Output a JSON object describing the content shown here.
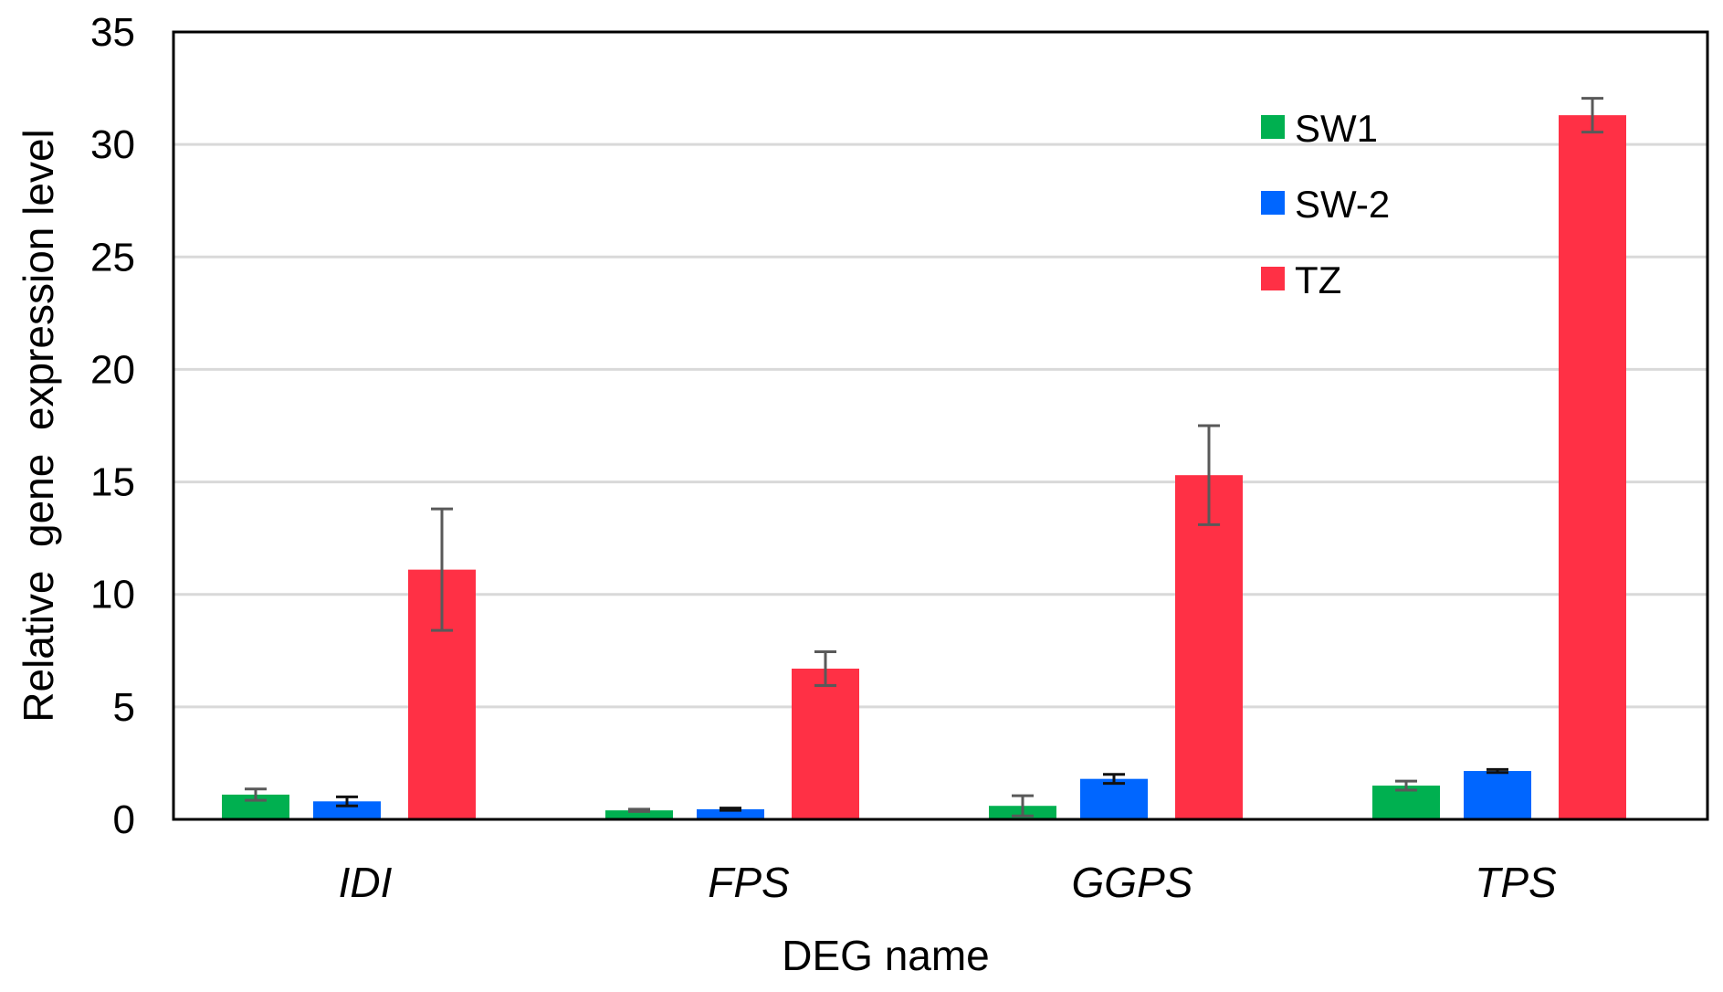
{
  "chart_data": {
    "type": "bar",
    "title": "",
    "xlabel": "DEG name",
    "ylabel": "Relative  gene  expression level",
    "categories": [
      "IDI",
      "FPS",
      "GGPS",
      "TPS"
    ],
    "ylim": [
      0,
      35
    ],
    "yticks": [
      0,
      5,
      10,
      15,
      20,
      25,
      30,
      35
    ],
    "grid": "horizontal",
    "legend_position": "top-right",
    "series": [
      {
        "name": "SW1",
        "color": "#00B050",
        "values": [
          1.1,
          0.4,
          0.6,
          1.5
        ],
        "errors": [
          0.25,
          0.05,
          0.45,
          0.2
        ]
      },
      {
        "name": "SW-2",
        "color": "#0066FF",
        "values": [
          0.8,
          0.45,
          1.8,
          2.15
        ],
        "errors": [
          0.2,
          0.05,
          0.2,
          0.07
        ]
      },
      {
        "name": "TZ",
        "color": "#FF3045",
        "values": [
          11.1,
          6.7,
          15.3,
          31.3
        ],
        "errors": [
          2.7,
          0.75,
          2.2,
          0.75
        ]
      }
    ]
  }
}
